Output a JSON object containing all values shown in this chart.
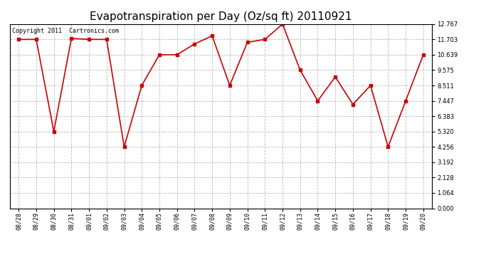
{
  "title": "Evapotranspiration per Day (Oz/sq ft) 20110921",
  "copyright": "Copyright 2011  Cartronics.com",
  "x_labels": [
    "08/28",
    "08/29",
    "08/30",
    "08/31",
    "09/01",
    "09/02",
    "09/03",
    "09/04",
    "09/05",
    "09/06",
    "09/07",
    "09/08",
    "09/09",
    "09/10",
    "09/11",
    "09/12",
    "09/13",
    "09/14",
    "09/15",
    "09/16",
    "09/17",
    "09/18",
    "09/19",
    "09/20"
  ],
  "y_values": [
    11.703,
    11.703,
    5.32,
    11.768,
    11.703,
    11.703,
    4.256,
    8.511,
    10.639,
    10.639,
    11.39,
    11.95,
    8.511,
    11.5,
    11.703,
    12.767,
    9.575,
    7.447,
    9.1,
    7.2,
    8.511,
    4.256,
    7.447,
    10.639
  ],
  "line_color": "#cc0000",
  "marker": "s",
  "marker_size": 2.5,
  "background_color": "#ffffff",
  "grid_color": "#bbbbbb",
  "y_min": 0.0,
  "y_max": 12.767,
  "y_ticks": [
    0.0,
    1.064,
    2.128,
    3.192,
    4.256,
    5.32,
    6.383,
    7.447,
    8.511,
    9.575,
    10.639,
    11.703,
    12.767
  ],
  "title_fontsize": 11,
  "copyright_fontsize": 6,
  "tick_fontsize": 6,
  "line_width": 1.2
}
